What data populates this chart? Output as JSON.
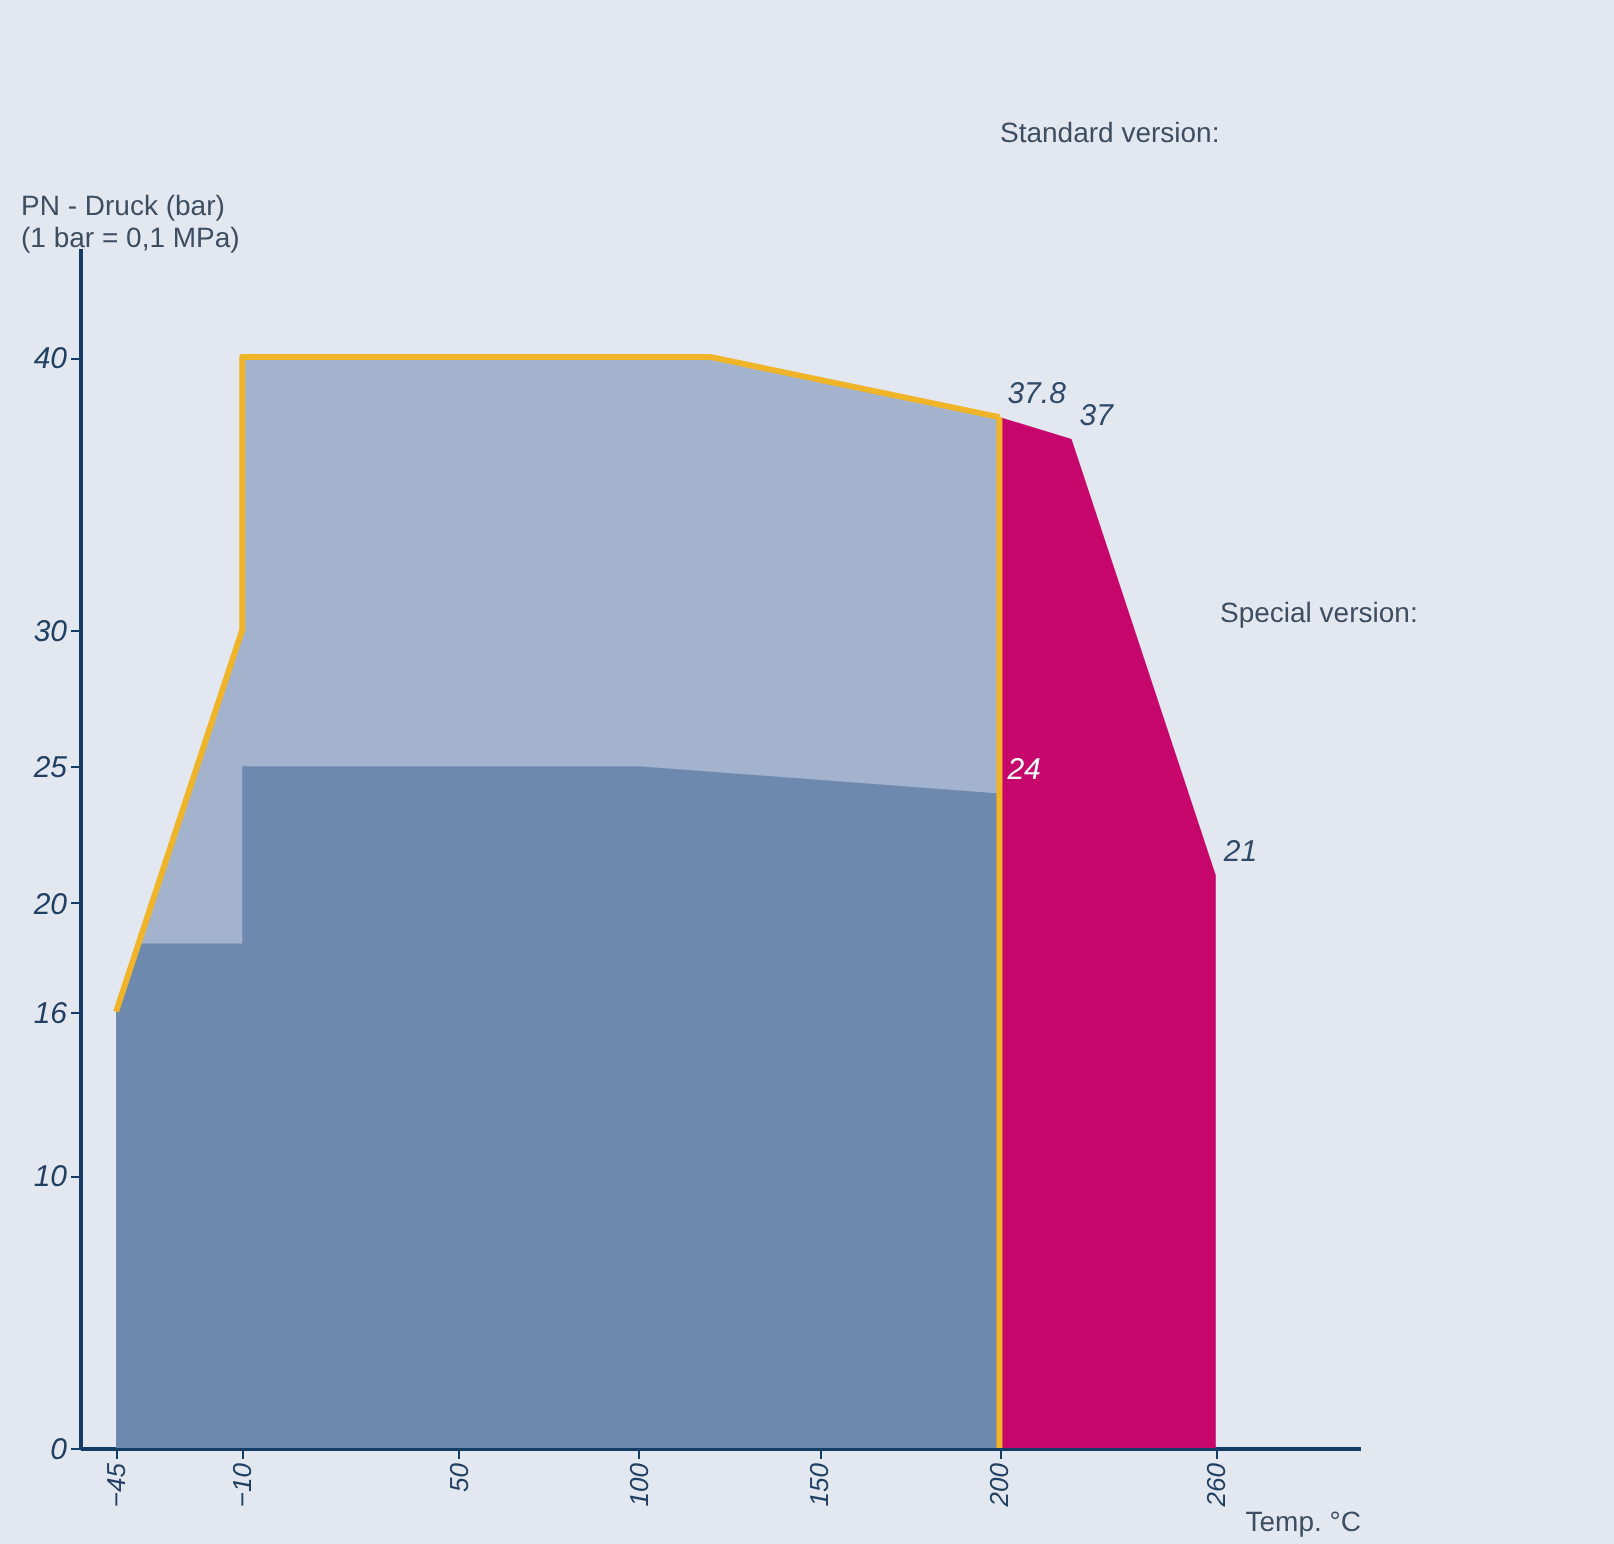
{
  "chart_data": {
    "type": "area",
    "xlabel": "Temp. °C",
    "ylabel": "PN - Druck (bar)\n(1 bar = 0,1 MPa)",
    "xlim": [
      -55,
      300
    ],
    "ylim": [
      0,
      44
    ],
    "xticks": [
      -45,
      -10,
      50,
      100,
      150,
      200,
      260
    ],
    "yticks": [
      0,
      10,
      16,
      20,
      25,
      30,
      40
    ],
    "grid": false,
    "series": [
      {
        "color": "#a3b3cd",
        "x": [
          -45,
          -10,
          -10,
          120,
          200
        ],
        "values": [
          16,
          30,
          40,
          40,
          37.8
        ]
      },
      {
        "color": "#c6066b",
        "x": [
          200,
          220,
          260
        ],
        "values": [
          37.8,
          37,
          21
        ]
      },
      {
        "color": "#6e89ae",
        "x": [
          -45,
          -38,
          -10,
          -10,
          100,
          200
        ],
        "values": [
          16,
          18.5,
          18.5,
          25,
          25,
          24
        ]
      },
      {
        "type": "line",
        "color": "#f0b428",
        "x": [
          -45,
          -10,
          -10,
          120,
          200
        ],
        "values": [
          16,
          30,
          40,
          40,
          37.8
        ]
      },
      {
        "type": "line",
        "color": "#f0b428",
        "x": [
          200,
          200
        ],
        "values": [
          37.8,
          0
        ]
      }
    ],
    "annotations": [
      {
        "text": "37.8",
        "x": 200,
        "y": 37.8
      },
      {
        "text": "37",
        "x": 220,
        "y": 37
      },
      {
        "text": "24",
        "x": 200,
        "y": 24
      },
      {
        "text": "21",
        "x": 260,
        "y": 21
      },
      "Standard version:",
      "Special version:"
    ]
  }
}
